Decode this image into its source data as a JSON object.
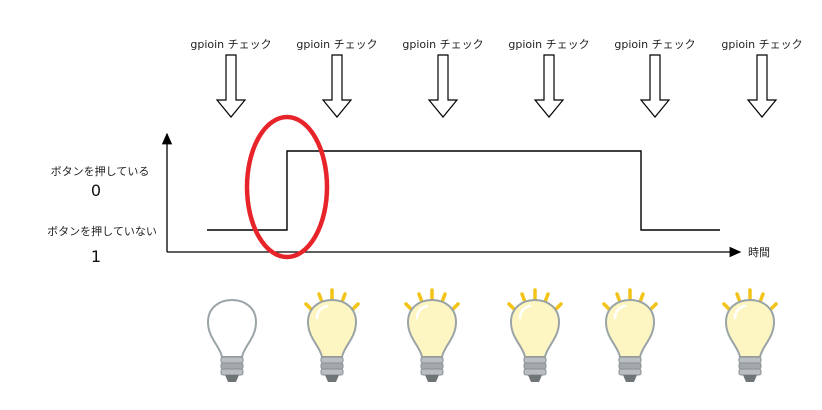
{
  "checks": {
    "label": "gpioin チェック",
    "count": 6
  },
  "y_axis": {
    "pressed_label": "ボタンを押している",
    "pressed_value": "0",
    "released_label": "ボタンを押していない",
    "released_value": "1"
  },
  "x_axis": {
    "label": "時間"
  },
  "signal": {
    "segments": [
      "released",
      "pressed",
      "released"
    ]
  },
  "bulbs": {
    "states": [
      "off",
      "on",
      "on",
      "on",
      "on",
      "on"
    ]
  },
  "colors": {
    "line": "#000000",
    "highlight": "#e8242b",
    "bulb_on_fill": "#fdf6c3",
    "bulb_on_ray": "#f3c417",
    "bulb_off_fill": "#ffffff",
    "bulb_outline": "#9aa4a6",
    "base": "#8a8f93"
  }
}
